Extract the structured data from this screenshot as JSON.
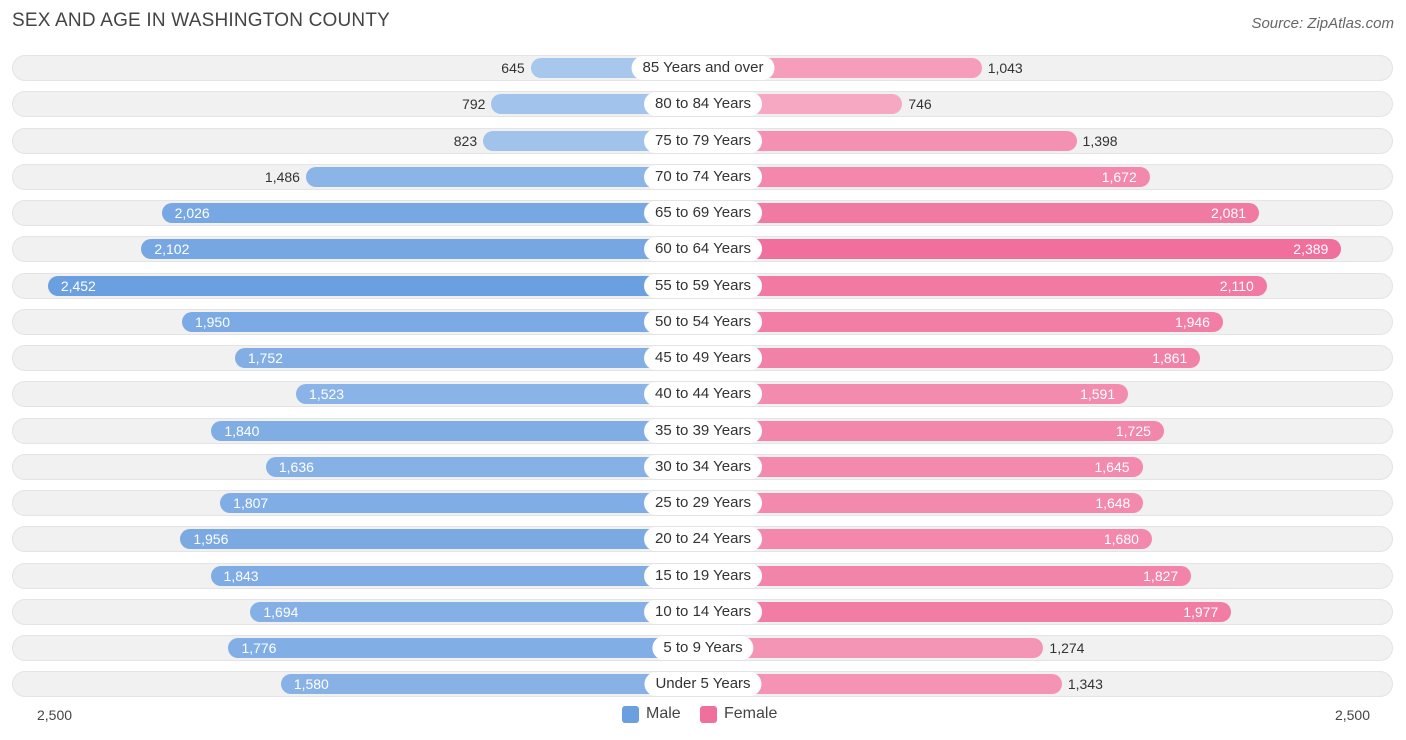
{
  "header": {
    "title": "SEX AND AGE IN WASHINGTON COUNTY",
    "source": "Source: ZipAtlas.com"
  },
  "colors": {
    "male_light": "#a9c8ed",
    "male_dark": "#6a9fe0",
    "female_light": "#f6a9c2",
    "female_dark": "#f06f9c"
  },
  "chart_data": {
    "type": "bar",
    "orientation": "horizontal-diverging",
    "title": "SEX AND AGE IN WASHINGTON COUNTY",
    "categories": [
      "85 Years and over",
      "80 to 84 Years",
      "75 to 79 Years",
      "70 to 74 Years",
      "65 to 69 Years",
      "60 to 64 Years",
      "55 to 59 Years",
      "50 to 54 Years",
      "45 to 49 Years",
      "40 to 44 Years",
      "35 to 39 Years",
      "30 to 34 Years",
      "25 to 29 Years",
      "20 to 24 Years",
      "15 to 19 Years",
      "10 to 14 Years",
      "5 to 9 Years",
      "Under 5 Years"
    ],
    "series": [
      {
        "name": "Male",
        "values": [
          645,
          792,
          823,
          1486,
          2026,
          2102,
          2452,
          1950,
          1752,
          1523,
          1840,
          1636,
          1807,
          1956,
          1843,
          1694,
          1776,
          1580
        ],
        "labels": [
          "645",
          "792",
          "823",
          "1,486",
          "2,026",
          "2,102",
          "2,452",
          "1,950",
          "1,752",
          "1,523",
          "1,840",
          "1,636",
          "1,807",
          "1,956",
          "1,843",
          "1,694",
          "1,776",
          "1,580"
        ]
      },
      {
        "name": "Female",
        "values": [
          1043,
          746,
          1398,
          1672,
          2081,
          2389,
          2110,
          1946,
          1861,
          1591,
          1725,
          1645,
          1648,
          1680,
          1827,
          1977,
          1274,
          1343
        ],
        "labels": [
          "1,043",
          "746",
          "1,398",
          "1,672",
          "2,081",
          "2,389",
          "2,110",
          "1,946",
          "1,861",
          "1,591",
          "1,725",
          "1,645",
          "1,648",
          "1,680",
          "1,827",
          "1,977",
          "1,274",
          "1,343"
        ]
      }
    ],
    "xlim": [
      0,
      2500
    ],
    "axis_min_label": "2,500",
    "axis_max_label": "2,500",
    "legend": [
      "Male",
      "Female"
    ],
    "legend_position": "bottom-center"
  }
}
